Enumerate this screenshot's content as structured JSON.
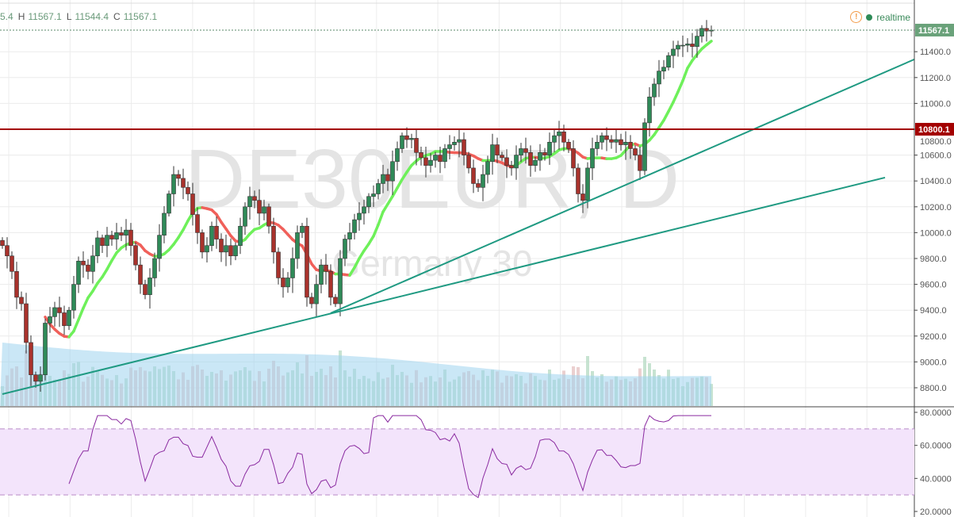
{
  "legend": {
    "open_partial": "5.4",
    "h_label": "H",
    "high": "11567.1",
    "l_label": "L",
    "low": "11544.4",
    "c_label": "C",
    "close": "11567.1"
  },
  "status": {
    "warning_icon": "exclamation-circle-icon",
    "realtime_label": "realtime",
    "realtime_color": "#2e8b57"
  },
  "watermark": {
    "symbol": "DE30EUR, D",
    "description": "Germany 30"
  },
  "chart_data": [
    {
      "type": "candlestick",
      "price_axis": {
        "ticks": [
          "11400.0",
          "11200.0",
          "11000.0",
          "10800.0",
          "10600.0",
          "10400.0",
          "10200.0",
          "10000.0",
          "9800.0",
          "9600.0",
          "9400.0",
          "9200.0",
          "9000.0",
          "8800.0"
        ],
        "range": [
          8660,
          11780
        ]
      },
      "last_price_label": "11567.1",
      "horizontal_line": {
        "price": 10800.1,
        "label": "10800.1",
        "color": "#a30000"
      },
      "trendlines": [
        {
          "from": [
            0,
            8751
          ],
          "to": [
            185.5,
            10426
          ],
          "color": "#1f9a82"
        },
        {
          "from": [
            69,
            9377
          ],
          "to": [
            192,
            11346
          ],
          "color": "#1f9a82"
        }
      ],
      "colors": {
        "up": "#2f8a58",
        "down": "#a8322c",
        "ma_up": "#6ef05a",
        "ma_down": "#f0605a",
        "volume": "#9fd3ee"
      },
      "grid": true,
      "close": [
        9900,
        9820,
        9700,
        9500,
        9450,
        9150,
        8900,
        8850,
        8900,
        9300,
        9350,
        9420,
        9380,
        9280,
        9400,
        9600,
        9780,
        9750,
        9700,
        9820,
        9960,
        9900,
        9980,
        9950,
        10000,
        9980,
        10020,
        9900,
        9750,
        9600,
        9520,
        9650,
        9800,
        9980,
        10150,
        10300,
        10450,
        10420,
        10350,
        10300,
        10140,
        10000,
        9850,
        9900,
        10050,
        9950,
        9850,
        9900,
        9820,
        9900,
        10050,
        10200,
        10280,
        10250,
        10150,
        10200,
        10050,
        9850,
        9650,
        9580,
        9650,
        9800,
        10000,
        10050,
        9500,
        9450,
        9600,
        9750,
        9700,
        9500,
        9450,
        9800,
        9950,
        10000,
        10100,
        10150,
        10200,
        10280,
        10300,
        10380,
        10450,
        10400,
        10550,
        10650,
        10750,
        10720,
        10730,
        10620,
        10580,
        10520,
        10560,
        10600,
        10550,
        10650,
        10680,
        10700,
        10720,
        10600,
        10500,
        10380,
        10350,
        10450,
        10550,
        10680,
        10600,
        10580,
        10520,
        10500,
        10600,
        10650,
        10620,
        10520,
        10560,
        10620,
        10600,
        10700,
        10750,
        10780,
        10700,
        10650,
        10500,
        10300,
        10250,
        10500,
        10650,
        10700,
        10750,
        10720,
        10700,
        10720,
        10680,
        10700,
        10650,
        10600,
        10480,
        10850,
        11050,
        11150,
        11250,
        11280,
        11370,
        11420,
        11450,
        11450,
        11460,
        11440,
        11520,
        11580,
        11560,
        11567.1
      ]
    },
    {
      "type": "line",
      "name": "",
      "y_axis": {
        "ticks": [
          "80.0000",
          "60.0000",
          "40.0000",
          "20.0000"
        ],
        "range": [
          17,
          82
        ]
      },
      "bands": [
        30,
        70
      ],
      "colors": {
        "line": "#8a2aa0",
        "band_fill": "#f3e4fb"
      }
    }
  ]
}
